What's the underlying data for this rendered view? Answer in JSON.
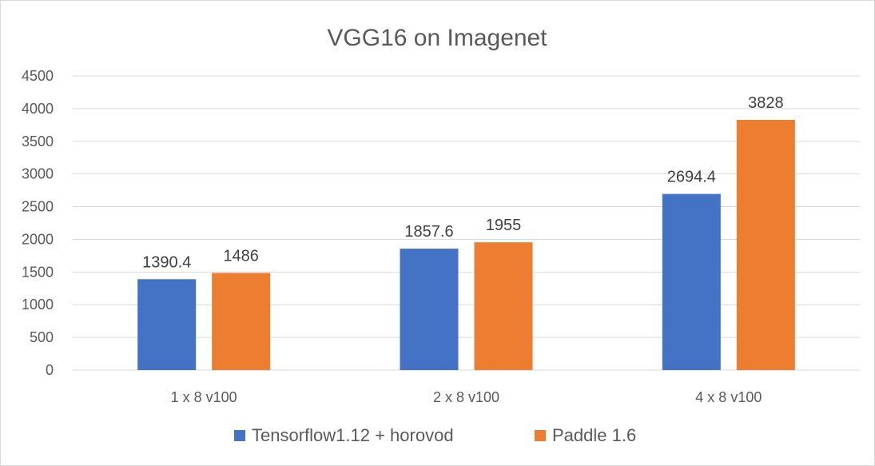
{
  "chart_data": {
    "type": "bar",
    "title": "VGG16 on Imagenet",
    "xlabel": "",
    "ylabel": "",
    "categories": [
      "1 x 8 v100",
      "2 x 8 v100",
      "4 x 8 v100"
    ],
    "series": [
      {
        "name": "Tensorflow1.12 + horovod",
        "color": "#4472c4",
        "values": [
          1390.4,
          1857.6,
          2694.4
        ]
      },
      {
        "name": "Paddle 1.6",
        "color": "#ed7d31",
        "values": [
          1486,
          1955,
          3828
        ]
      }
    ],
    "ylim": [
      0,
      4500
    ],
    "yticks": [
      0,
      500,
      1000,
      1500,
      2000,
      2500,
      3000,
      3500,
      4000,
      4500
    ],
    "grid": true,
    "legend_position": "bottom"
  }
}
